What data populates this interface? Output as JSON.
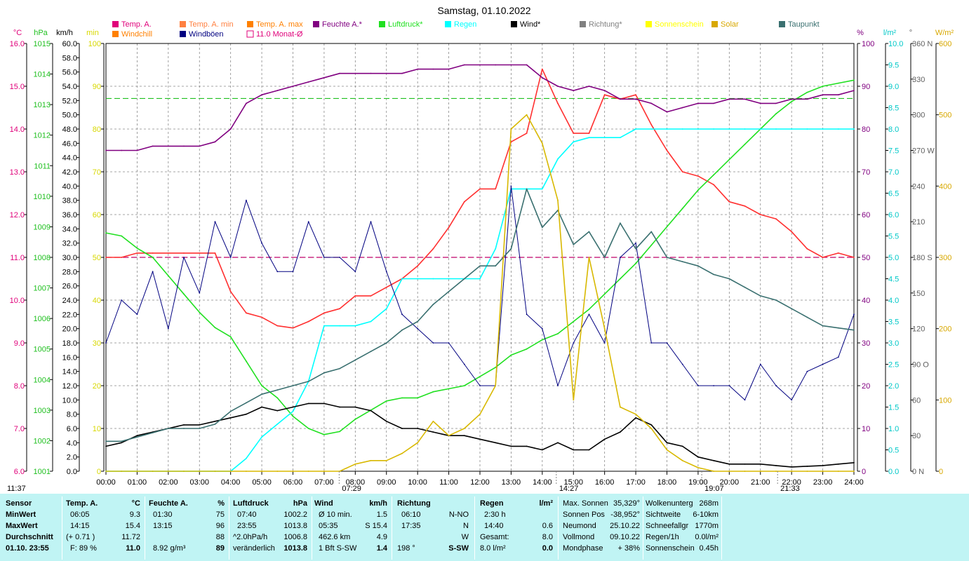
{
  "chart_data": {
    "type": "line",
    "title": "Samstag, 01.10.2022",
    "x_ticks": [
      "00:00",
      "01:00",
      "02:00",
      "03:00",
      "04:00",
      "05:00",
      "06:00",
      "07:00",
      "08:00",
      "09:00",
      "10:00",
      "11:00",
      "12:00",
      "13:00",
      "14:00",
      "15:00",
      "16:00",
      "17:00",
      "18:00",
      "19:00",
      "20:00",
      "21:00",
      "22:00",
      "23:00",
      "24:00"
    ],
    "axes": {
      "temp": {
        "unit": "°C",
        "ticks": [
          "16.0",
          "15.0",
          "14.0",
          "13.0",
          "12.0",
          "11.0",
          "10.0",
          "9.0",
          "8.0",
          "7.0",
          "6.0"
        ],
        "ylim": [
          6,
          16
        ],
        "color": "#e0007a"
      },
      "pressure": {
        "unit": "hPa",
        "ticks": [
          "1015",
          "1014",
          "1013",
          "1012",
          "1011",
          "1010",
          "1009",
          "1008",
          "1007",
          "1006",
          "1005",
          "1004",
          "1003",
          "1002",
          "1001"
        ],
        "ylim": [
          1001,
          1015
        ],
        "color": "#20c020"
      },
      "wind": {
        "unit": "km/h",
        "ticks": [
          "60.0",
          "58.0",
          "56.0",
          "54.0",
          "52.0",
          "50.0",
          "48.0",
          "46.0",
          "44.0",
          "42.0",
          "40.0",
          "38.0",
          "36.0",
          "34.0",
          "32.0",
          "30.0",
          "28.0",
          "26.0",
          "24.0",
          "22.0",
          "20.0",
          "18.0",
          "16.0",
          "14.0",
          "12.0",
          "10.0",
          "8.0",
          "6.0",
          "4.0",
          "2.0",
          "0.0"
        ],
        "ylim": [
          0,
          60
        ],
        "color": "#000000"
      },
      "sunshine": {
        "unit": "min",
        "ticks": [
          "100",
          "90",
          "80",
          "70",
          "60",
          "50",
          "40",
          "30",
          "20",
          "10",
          "0"
        ],
        "ylim": [
          0,
          100
        ],
        "color": "#d8d800"
      },
      "humidity": {
        "unit": "%",
        "ticks": [
          "100",
          "90",
          "80",
          "70",
          "60",
          "50",
          "40",
          "30",
          "20",
          "10",
          "0"
        ],
        "ylim": [
          0,
          100
        ],
        "color": "#800080"
      },
      "rain": {
        "unit": "l/m²",
        "ticks": [
          "10.0",
          "9.5",
          "9.0",
          "8.5",
          "8.0",
          "7.5",
          "7.0",
          "6.5",
          "6.0",
          "5.5",
          "5.0",
          "4.5",
          "4.0",
          "3.5",
          "3.0",
          "2.5",
          "2.0",
          "1.5",
          "1.0",
          "0.5",
          "0.0"
        ],
        "ylim": [
          0,
          10
        ],
        "color": "#00c8c8"
      },
      "direction": {
        "unit": "°",
        "ticks": [
          "360 N",
          "330",
          "300",
          "270 W",
          "240",
          "210",
          "180 S",
          "150",
          "120",
          "90 O",
          "60",
          "30",
          "0 N"
        ],
        "ylim": [
          0,
          360
        ],
        "color": "#606060"
      },
      "solar": {
        "unit": "W/m²",
        "ticks": [
          "600",
          "500",
          "400",
          "300",
          "200",
          "100",
          "0"
        ],
        "ylim": [
          0,
          600
        ],
        "color": "#d8a800"
      }
    },
    "legend": [
      {
        "label": "Temp. A.",
        "color": "#e0007a",
        "style": "box"
      },
      {
        "label": "Temp. A. min",
        "color": "#ff8040",
        "style": "box"
      },
      {
        "label": "Temp. A. max",
        "color": "#ff8000",
        "style": "box"
      },
      {
        "label": "Feuchte A.*",
        "color": "#800080",
        "style": "box"
      },
      {
        "label": "Luftdruck*",
        "color": "#20e020",
        "style": "box"
      },
      {
        "label": "Regen",
        "color": "#00ffff",
        "style": "box"
      },
      {
        "label": "Wind*",
        "color": "#000000",
        "style": "box"
      },
      {
        "label": "Richtung*",
        "color": "#808080",
        "style": "box"
      },
      {
        "label": "Sonnenschein",
        "color": "#ffff00",
        "style": "box"
      },
      {
        "label": "Solar",
        "color": "#d8a800",
        "style": "box"
      },
      {
        "label": "Taupunkt",
        "color": "#3a7070",
        "style": "box"
      },
      {
        "label": "Windchill",
        "color": "#ff8000",
        "style": "box"
      },
      {
        "label": "Windböen",
        "color": "#000080",
        "style": "box"
      },
      {
        "label": "11.0 Monat-Ø",
        "color": "#e0007a",
        "style": "outline"
      }
    ],
    "monthly_avg_temp": 11.0,
    "pressure_ref_line": 1013.2,
    "hours": [
      0,
      0.5,
      1,
      1.5,
      2,
      2.5,
      3,
      3.5,
      4,
      4.5,
      5,
      5.5,
      6,
      6.5,
      7,
      7.5,
      8,
      8.5,
      9,
      9.5,
      10,
      10.5,
      11,
      11.5,
      12,
      12.5,
      13,
      13.5,
      14,
      14.5,
      15,
      15.5,
      16,
      16.5,
      17,
      17.5,
      18,
      18.5,
      19,
      19.5,
      20,
      20.5,
      21,
      21.5,
      22,
      22.5,
      23,
      23.5,
      24
    ],
    "series": [
      {
        "name": "Temp. A.",
        "axis": "temp",
        "color": "#ff3030",
        "values": [
          11.0,
          11.0,
          11.1,
          11.1,
          11.1,
          11.1,
          11.1,
          11.1,
          10.2,
          9.7,
          9.6,
          9.4,
          9.35,
          9.5,
          9.7,
          9.8,
          10.1,
          10.1,
          10.3,
          10.5,
          10.8,
          11.2,
          11.7,
          12.3,
          12.6,
          12.6,
          13.7,
          13.9,
          15.4,
          14.6,
          13.9,
          13.9,
          14.8,
          14.7,
          14.8,
          14.1,
          13.5,
          13.0,
          12.9,
          12.7,
          12.3,
          12.2,
          12.0,
          11.9,
          11.6,
          11.2,
          11.0,
          11.1,
          11.0
        ]
      },
      {
        "name": "Luftdruck",
        "axis": "pressure",
        "color": "#20e020",
        "values": [
          1008.8,
          1008.7,
          1008.3,
          1008.0,
          1007.4,
          1006.8,
          1006.2,
          1005.7,
          1005.4,
          1004.6,
          1003.8,
          1003.4,
          1002.8,
          1002.4,
          1002.2,
          1002.3,
          1002.7,
          1003.0,
          1003.3,
          1003.4,
          1003.4,
          1003.6,
          1003.7,
          1003.8,
          1004.1,
          1004.4,
          1004.8,
          1005.0,
          1005.3,
          1005.5,
          1005.9,
          1006.3,
          1006.8,
          1007.3,
          1007.8,
          1008.4,
          1009.0,
          1009.6,
          1010.2,
          1010.7,
          1011.2,
          1011.7,
          1012.2,
          1012.7,
          1013.1,
          1013.4,
          1013.6,
          1013.7,
          1013.8
        ]
      },
      {
        "name": "Feuchte A.",
        "axis": "humidity",
        "color": "#800080",
        "values": [
          75,
          75,
          75,
          76,
          76,
          76,
          76,
          77,
          80,
          86,
          88,
          89,
          90,
          91,
          92,
          93,
          93,
          93,
          93,
          93,
          94,
          94,
          94,
          95,
          95,
          95,
          95,
          95,
          92,
          90,
          89,
          90,
          89,
          87,
          87,
          86,
          84,
          85,
          86,
          86,
          87,
          87,
          86,
          86,
          87,
          87,
          88,
          88,
          89
        ]
      },
      {
        "name": "Regen",
        "axis": "rain",
        "color": "#00ffff",
        "values": [
          0,
          0,
          0,
          0,
          0,
          0,
          0,
          0,
          0,
          0.3,
          0.8,
          1.1,
          1.4,
          2.1,
          3.4,
          3.4,
          3.4,
          3.5,
          3.8,
          4.5,
          4.5,
          4.5,
          4.5,
          4.5,
          4.5,
          5.2,
          6.6,
          6.6,
          6.6,
          7.3,
          7.7,
          7.8,
          7.8,
          7.8,
          8.0,
          8.0,
          8.0,
          8.0,
          8.0,
          8.0,
          8.0,
          8.0,
          8.0,
          8.0,
          8.0,
          8.0,
          8.0,
          8.0,
          8.0
        ]
      },
      {
        "name": "Wind",
        "axis": "wind",
        "color": "#000000",
        "values": [
          3.5,
          4.0,
          5.0,
          5.5,
          6.0,
          6.5,
          6.5,
          7.0,
          7.5,
          8.0,
          9.0,
          8.5,
          9.0,
          9.5,
          9.5,
          9.0,
          9.0,
          8.5,
          7.0,
          6.0,
          6.0,
          5.5,
          5.0,
          5.0,
          4.5,
          4.0,
          3.5,
          3.5,
          3.0,
          4.0,
          3.0,
          3.0,
          4.5,
          5.5,
          7.5,
          6.5,
          4.0,
          3.5,
          2.0,
          1.5,
          1.0,
          1.0,
          1.0,
          0.8,
          0.6,
          0.7,
          0.8,
          1.0,
          1.2
        ]
      },
      {
        "name": "Windböen",
        "axis": "wind",
        "color": "#000080",
        "values": [
          18,
          24,
          22,
          28,
          20,
          30,
          25,
          35,
          30,
          38,
          32,
          28,
          28,
          35,
          30,
          30,
          28,
          35,
          28,
          22,
          20,
          18,
          18,
          15,
          12,
          12,
          40,
          22,
          20,
          12,
          18,
          22,
          18,
          30,
          32,
          18,
          18,
          15,
          12,
          12,
          12,
          10,
          15,
          12,
          10,
          14,
          15,
          16,
          22
        ]
      },
      {
        "name": "Taupunkt",
        "axis": "temp",
        "color": "#3a7070",
        "values": [
          6.7,
          6.7,
          6.8,
          6.9,
          7.0,
          7.0,
          7.0,
          7.1,
          7.4,
          7.6,
          7.8,
          7.9,
          8.0,
          8.1,
          8.3,
          8.4,
          8.6,
          8.8,
          9.0,
          9.3,
          9.5,
          9.9,
          10.2,
          10.5,
          10.8,
          10.8,
          11.2,
          12.6,
          11.7,
          12.1,
          11.3,
          11.6,
          11.0,
          11.8,
          11.2,
          11.6,
          11.0,
          10.9,
          10.8,
          10.6,
          10.5,
          10.3,
          10.1,
          10.0,
          9.8,
          9.6,
          9.4,
          9.35,
          9.3
        ]
      },
      {
        "name": "Solar",
        "axis": "solar",
        "color": "#d8b800",
        "values": [
          0,
          0,
          0,
          0,
          0,
          0,
          0,
          0,
          0,
          0,
          0,
          0,
          0,
          0,
          0,
          0,
          10,
          15,
          15,
          25,
          40,
          70,
          50,
          60,
          80,
          120,
          480,
          500,
          460,
          380,
          100,
          300,
          200,
          90,
          80,
          60,
          30,
          15,
          5,
          0,
          0,
          0,
          0,
          0,
          0,
          0,
          0,
          0,
          0
        ]
      }
    ],
    "time_markers": {
      "sunrise": "07:29",
      "solar_noon": "14:27",
      "sunset": "19:07",
      "moonset": "21:33",
      "moonrise": "11:37"
    }
  },
  "stats": {
    "sensor": {
      "title": "Sensor",
      "labels": [
        "MinWert",
        "MaxWert",
        "Durchschnitt"
      ],
      "date": "01.10. 23:55"
    },
    "temp": {
      "title": "Temp. A.",
      "unit": "°C",
      "rows": [
        [
          "06:05",
          "9.3"
        ],
        [
          "14:15",
          "15.4"
        ],
        [
          "(+ 0.71 )",
          "11.72"
        ]
      ],
      "f": "F: 89 %",
      "current": "11.0"
    },
    "hum": {
      "title": "Feuchte A.",
      "unit": "%",
      "rows": [
        [
          "01:30",
          "75"
        ],
        [
          "13:15",
          "96"
        ],
        [
          "",
          "88"
        ]
      ],
      "abs": "8.92 g/m³",
      "current": "89"
    },
    "press": {
      "title": "Luftdruck",
      "unit": "hPa",
      "rows": [
        [
          "07:40",
          "1002.2"
        ],
        [
          "23:55",
          "1013.8"
        ],
        [
          "^2.0hPa/h",
          "1006.8"
        ]
      ],
      "trend": "veränderlich",
      "current": "1013.8"
    },
    "wind": {
      "title": "Wind",
      "unit": "km/h",
      "rows": [
        [
          "Ø 10 min.",
          "1.5"
        ],
        [
          "05:35",
          "S 15.4"
        ],
        [
          "462.6 km",
          "4.9"
        ]
      ],
      "bft": "1 Bft S-SW",
      "current": "1.4"
    },
    "dir": {
      "title": "Richtung",
      "rows": [
        [
          "06:10",
          "N-NO"
        ],
        [
          "17:35",
          "N"
        ],
        [
          "",
          "W"
        ]
      ],
      "deg": "198 °",
      "current": "S-SW"
    },
    "rain": {
      "title": "Regen",
      "unit": "l/m²",
      "rows": [
        [
          "2:30 h",
          ""
        ],
        [
          "14:40",
          "0.6"
        ],
        [
          "Gesamt:",
          "8.0"
        ]
      ],
      "total": "8.0 l/m²",
      "current": "0.0"
    },
    "astro": {
      "rows": [
        [
          "Max. Sonnen",
          "35,329°"
        ],
        [
          "Sonnen Pos",
          "-38,952°"
        ],
        [
          "Neumond",
          "25.10.22"
        ],
        [
          "Vollmond",
          "09.10.22"
        ],
        [
          "Mondphase",
          "+ 38%"
        ]
      ]
    },
    "cloud": {
      "rows": [
        [
          "Wolkenunterg",
          "268m"
        ],
        [
          "Sichtweite",
          "6-10km"
        ],
        [
          "Schneefallgr",
          "1770m"
        ],
        [
          "Regen/1h",
          "0.0l/m²"
        ],
        [
          "Sonnenschein",
          "0.45h"
        ]
      ]
    }
  }
}
